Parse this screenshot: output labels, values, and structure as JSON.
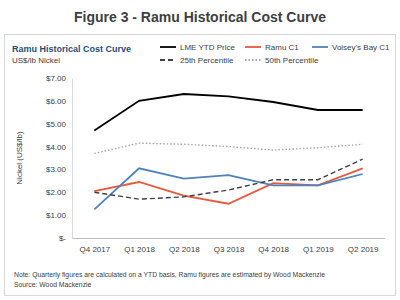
{
  "chart_data": {
    "type": "line",
    "title": "Figure 3 - Ramu Historical Cost Curve",
    "subtitle": "Ramu Historical Cost Curve",
    "unit_label": "US$/lb Nickel",
    "y_label": "Nickel (US$/lb)",
    "note": "Note: Quarterly figures are calculated on a YTD basis, Ramu figures are estimated by Wood Mackenzie",
    "source": "Source: Wood Mackenzie",
    "categories": [
      "Q4 2017",
      "Q1 2018",
      "Q2 2018",
      "Q3 2018",
      "Q4 2018",
      "Q1 2019",
      "Q2 2019"
    ],
    "series": [
      {
        "name": "LME YTD Price",
        "color": "#000000",
        "line_style": "solid",
        "values": [
          4.7,
          6.0,
          6.3,
          6.2,
          5.95,
          5.6,
          5.6
        ]
      },
      {
        "name": "Ramu C1",
        "color": "#e8593a",
        "line_style": "solid",
        "values": [
          2.05,
          2.45,
          1.85,
          1.5,
          2.4,
          2.3,
          3.05
        ]
      },
      {
        "name": "Voisey's Bay C1",
        "color": "#4f81bd",
        "line_style": "solid",
        "values": [
          1.25,
          3.05,
          2.6,
          2.75,
          2.3,
          2.3,
          2.8
        ]
      },
      {
        "name": "25th Percentile",
        "color": "#404040",
        "line_style": "dashed",
        "values": [
          2.0,
          1.7,
          1.8,
          2.1,
          2.55,
          2.55,
          3.45
        ]
      },
      {
        "name": "50th Percentile",
        "color": "#a6a6a6",
        "line_style": "dotted",
        "values": [
          3.7,
          4.15,
          4.1,
          4.0,
          3.85,
          3.95,
          4.1
        ]
      }
    ],
    "ylim": [
      0,
      7
    ],
    "yticks": [
      {
        "value": 0,
        "label": "$-"
      },
      {
        "value": 1,
        "label": "$1.00"
      },
      {
        "value": 2,
        "label": "$2.00"
      },
      {
        "value": 3,
        "label": "$3.00"
      },
      {
        "value": 4,
        "label": "$4.00"
      },
      {
        "value": 5,
        "label": "$5.00"
      },
      {
        "value": 6,
        "label": "$6.00"
      },
      {
        "value": 7,
        "label": "$7.00"
      }
    ],
    "grid": false,
    "legend": "top-right"
  }
}
